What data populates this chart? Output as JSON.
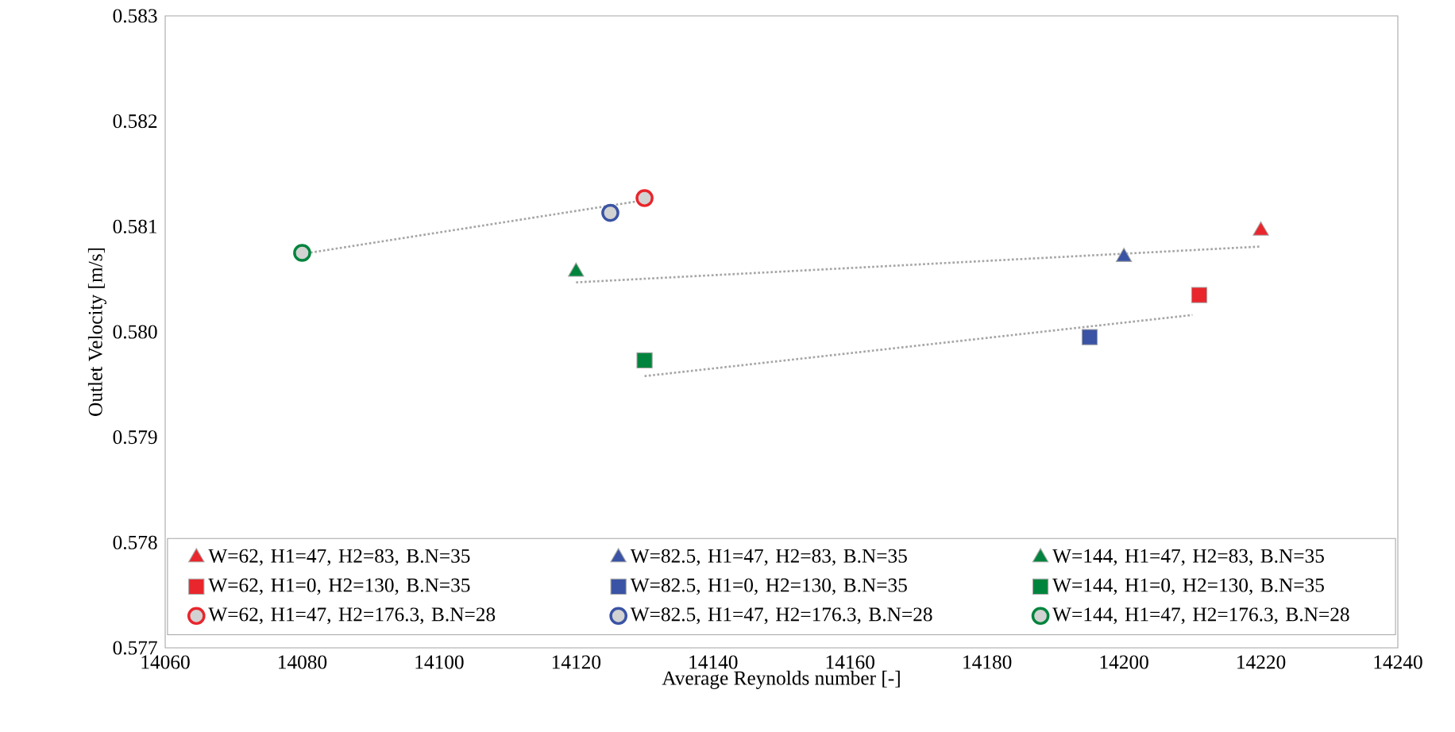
{
  "chart_data": {
    "type": "scatter",
    "xlabel": "Average Reynolds number [-]",
    "ylabel": "Outlet Velocity [m/s]",
    "xlim": [
      14060,
      14240
    ],
    "xticks": [
      14060,
      14080,
      14100,
      14120,
      14140,
      14160,
      14180,
      14200,
      14220,
      14240
    ],
    "ylim": [
      0.577,
      0.583
    ],
    "yticks": [
      0.577,
      0.578,
      0.579,
      {
        "value": 0.58,
        "label": "0.580"
      },
      0.581,
      0.582,
      0.583
    ],
    "legend": "bottom",
    "series": [
      {
        "type": "line",
        "color": "#a6a6a6",
        "line_style": "dotted",
        "marker": "none",
        "x": [
          14080,
          14130
        ],
        "values": [
          0.58074,
          0.58125
        ]
      },
      {
        "type": "line",
        "color": "#a6a6a6",
        "line_style": "dotted",
        "marker": "none",
        "x": [
          14120,
          14220
        ],
        "values": [
          0.58047,
          0.58081
        ]
      },
      {
        "type": "line",
        "color": "#a6a6a6",
        "line_style": "dotted",
        "marker": "none",
        "x": [
          14130,
          14210
        ],
        "values": [
          0.57958,
          0.58016
        ]
      },
      {
        "name": "W=62, H1=47, H2=83, B.N=35",
        "color": "#e8262c",
        "marker": "triangle",
        "x": [
          14220
        ],
        "values": [
          0.58096
        ]
      },
      {
        "name": "W=82.5, H1=47, H2=83, B.N=35",
        "color": "#3a53a4",
        "marker": "triangle",
        "x": [
          14200
        ],
        "values": [
          0.58071
        ]
      },
      {
        "name": "W=144, H1=47, H2=83, B.N=35",
        "color": "#00843d",
        "marker": "triangle",
        "x": [
          14120
        ],
        "values": [
          0.58057
        ]
      },
      {
        "name": "W=62, H1=0, H2=130, B.N=35",
        "color": "#e8262c",
        "marker": "square",
        "x": [
          14211
        ],
        "values": [
          0.58035
        ]
      },
      {
        "name": "W=82.5, H1=0, H2=130, B.N=35",
        "color": "#3a53a4",
        "marker": "square",
        "x": [
          14195
        ],
        "values": [
          0.57995
        ]
      },
      {
        "name": "W=144, H1=0, H2=130, B.N=35",
        "color": "#00843d",
        "marker": "square",
        "x": [
          14130
        ],
        "values": [
          0.57973
        ]
      },
      {
        "name": "W=62, H1=47, H2=176.3, B.N=28",
        "color": "#e8262c",
        "marker": "circle",
        "x": [
          14130
        ],
        "values": [
          0.58127
        ]
      },
      {
        "name": "W=82.5, H1=47, H2=176.3, B.N=28",
        "color": "#3a53a4",
        "marker": "circle",
        "x": [
          14125
        ],
        "values": [
          0.58113
        ]
      },
      {
        "name": "W=144, H1=47, H2=176.3, B.N=28",
        "color": "#00843d",
        "marker": "circle",
        "x": [
          14080
        ],
        "values": [
          0.58075
        ]
      }
    ]
  }
}
